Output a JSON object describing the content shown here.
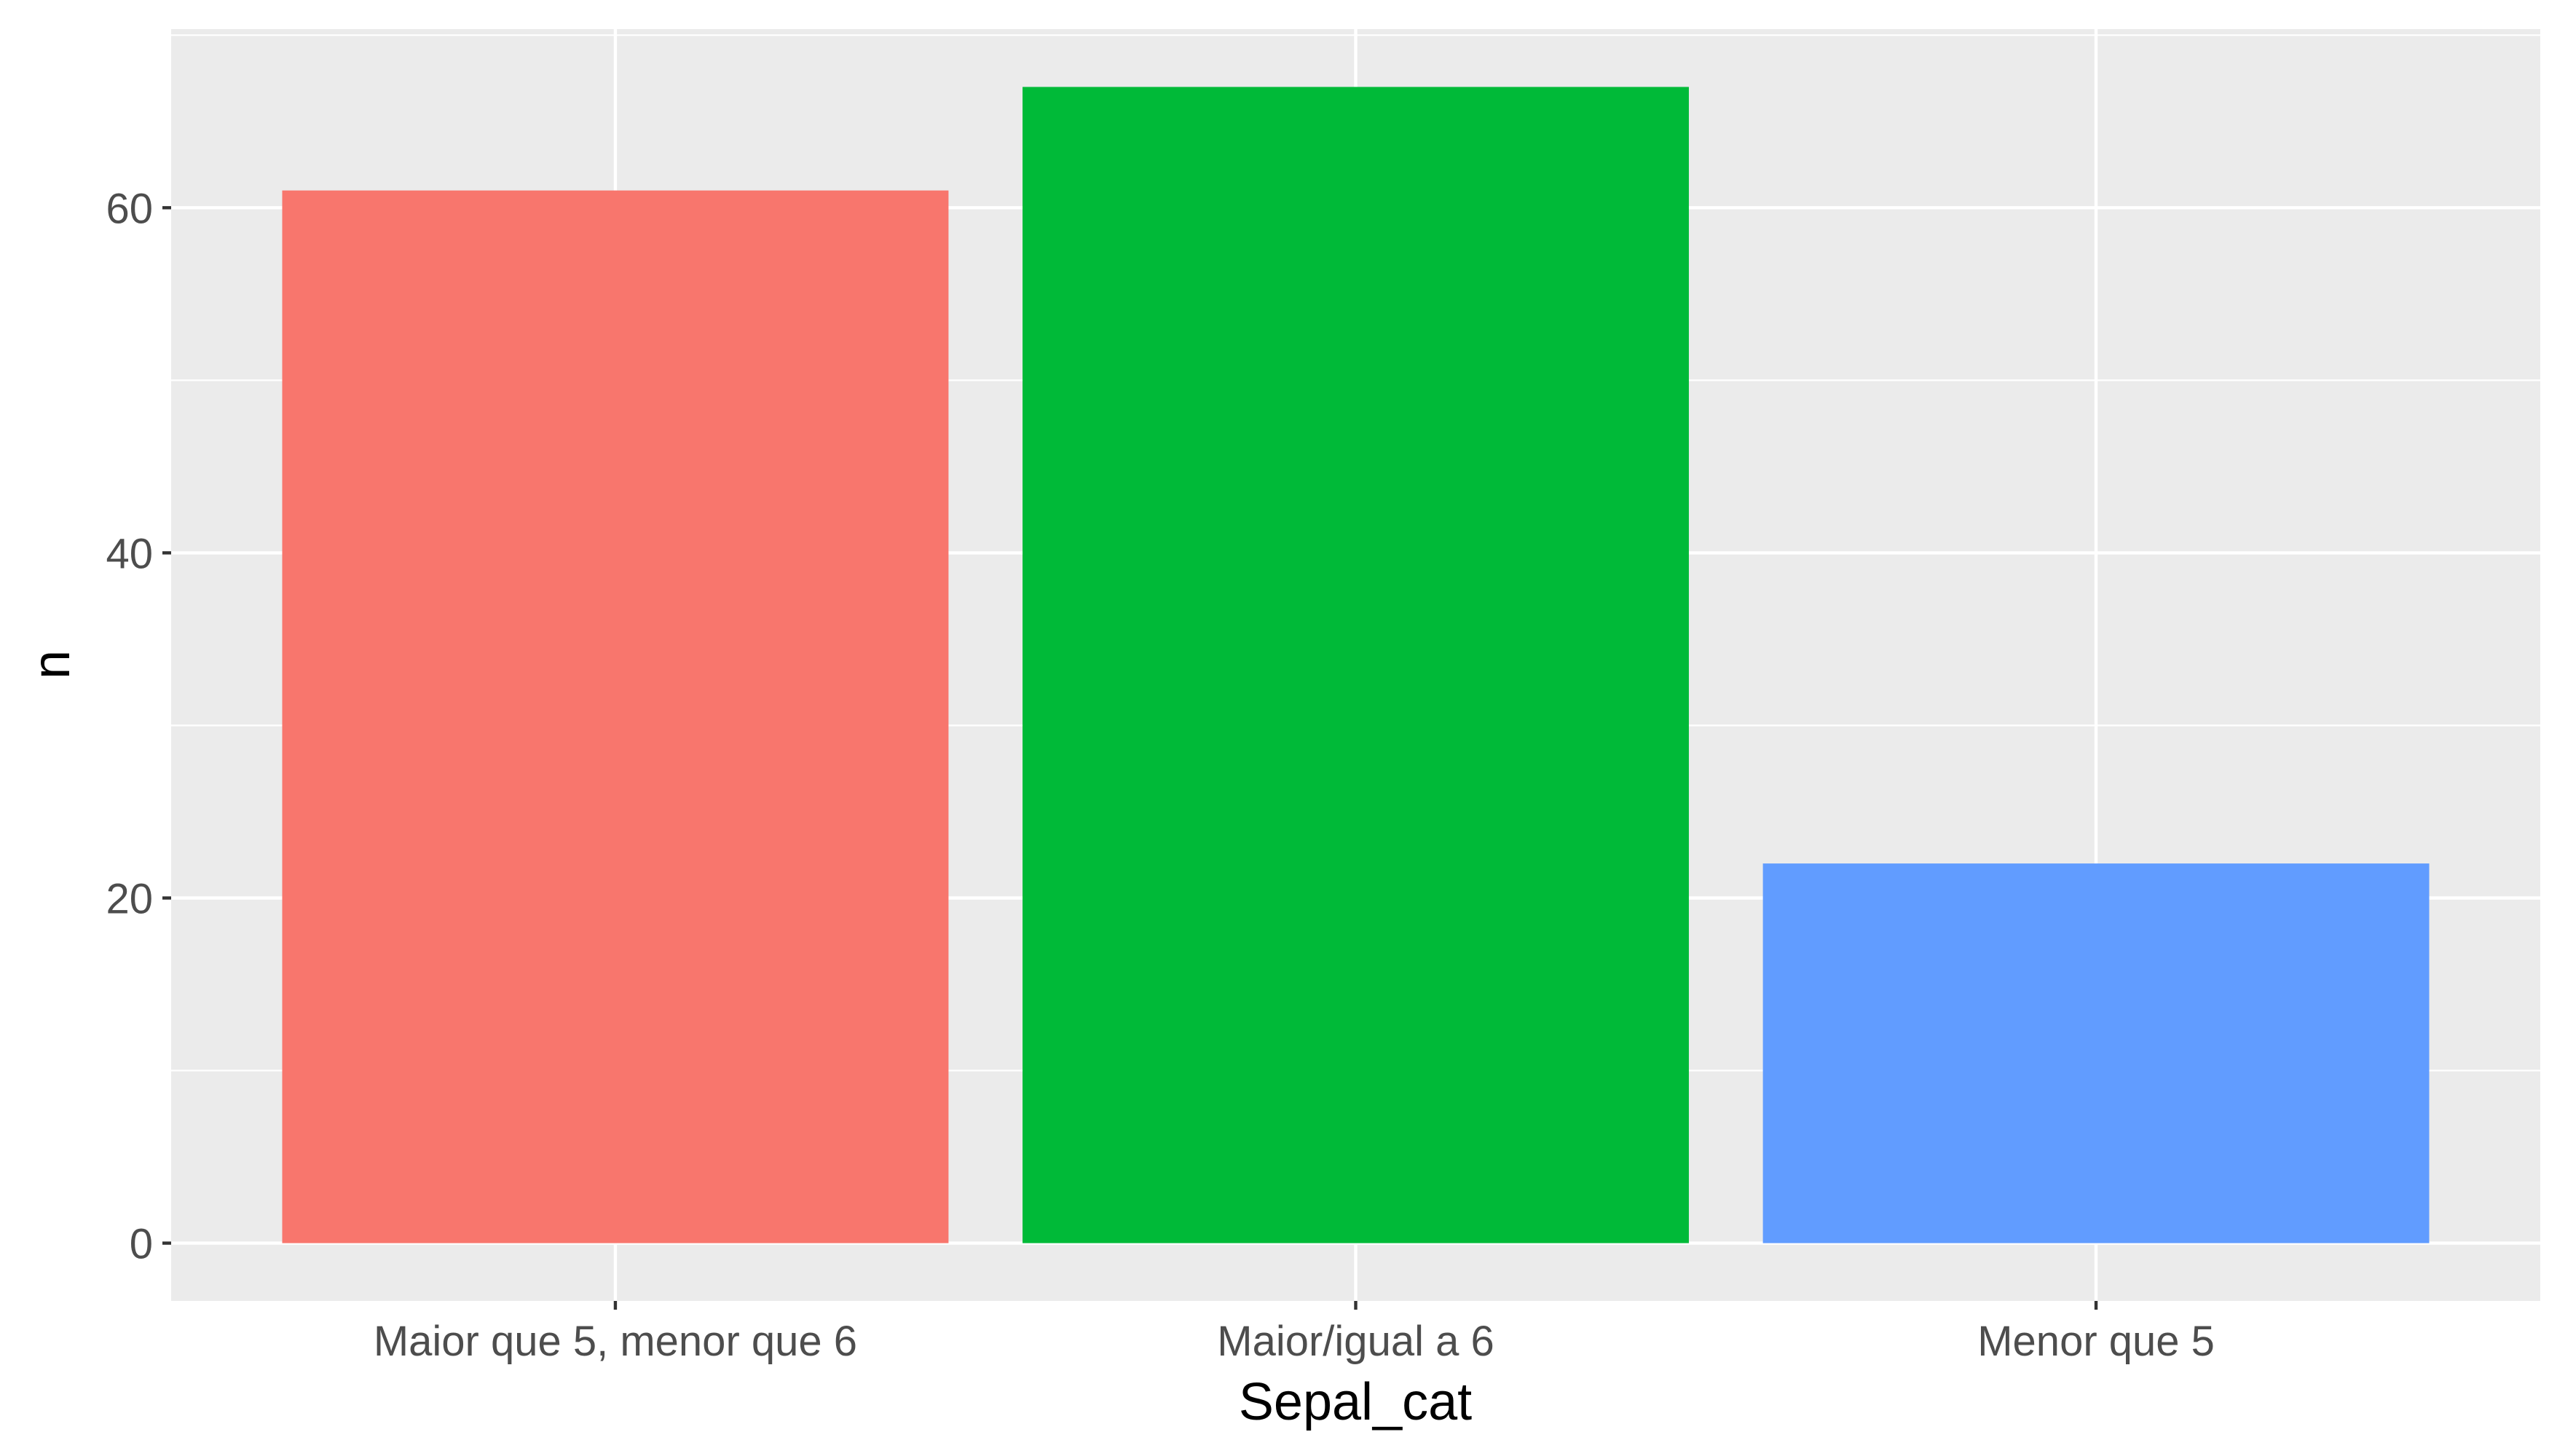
{
  "chart_data": {
    "type": "bar",
    "categories": [
      "Maior que 5, menor que 6",
      "Maior/igual a 6",
      "Menor que 5"
    ],
    "values": [
      61,
      67,
      22
    ],
    "colors": [
      "#F8766D",
      "#00BA38",
      "#619CFF"
    ],
    "xlabel": "Sepal_cat",
    "ylabel": "n",
    "ylim": [
      -3.35,
      70.35
    ],
    "yticks": [
      0,
      20,
      40,
      60
    ],
    "y_minor_ticks": [
      10,
      30,
      50,
      70
    ],
    "panel_background": "#EBEBEB",
    "grid_color": "#FFFFFF",
    "grid": true,
    "legend": "none"
  }
}
